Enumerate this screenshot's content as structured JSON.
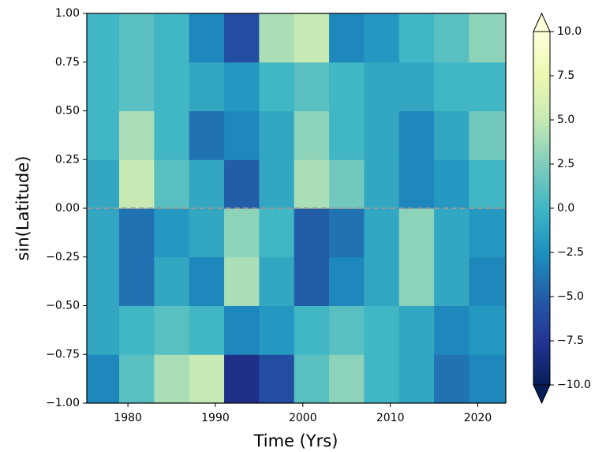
{
  "chart_data": {
    "type": "heatmap",
    "x_label": "Time (Yrs)",
    "y_label": "sin(Latitude)",
    "xlim": [
      1975.3,
      2023.2
    ],
    "xticks": [
      1980,
      1990,
      2000,
      2010,
      2020
    ],
    "ylim": [
      -1,
      1
    ],
    "yticks": [
      {
        "value": -1,
        "label": "−1.00"
      },
      {
        "value": -0.75,
        "label": "−0.75"
      },
      {
        "value": -0.5,
        "label": "−0.50"
      },
      {
        "value": -0.25,
        "label": "−0.25"
      },
      {
        "value": 0,
        "label": "0.00"
      },
      {
        "value": 0.25,
        "label": "0.25"
      },
      {
        "value": 0.5,
        "label": "0.50"
      },
      {
        "value": 0.75,
        "label": "0.75"
      },
      {
        "value": 1,
        "label": "1.00"
      }
    ],
    "x_edges": [
      1975.3,
      1979,
      1983,
      1987,
      1991,
      1995,
      1999,
      2003,
      2007,
      2011,
      2015,
      2019,
      2023.2
    ],
    "y_edges": [
      -1,
      -0.75,
      -0.5,
      -0.25,
      0,
      0.25,
      0.5,
      0.75,
      1
    ],
    "values": [
      [
        -3,
        1,
        4,
        5,
        -8,
        -6,
        1,
        3,
        0,
        -1,
        -4,
        -3
      ],
      [
        -1,
        0,
        1,
        0,
        -3,
        -2,
        0,
        1,
        0,
        -1,
        -3,
        -2
      ],
      [
        -1,
        -4,
        -1,
        -3,
        4,
        -1,
        -5,
        -3,
        -1,
        3,
        -1,
        -3
      ],
      [
        -1,
        -4,
        -2,
        -1,
        3,
        0,
        -5,
        -4,
        -1,
        3,
        -1,
        -2
      ],
      [
        -1,
        5,
        1,
        -1,
        -5,
        -1,
        4,
        2,
        -1,
        -3,
        -2,
        0
      ],
      [
        0,
        4,
        0,
        -4,
        -3,
        -1,
        3,
        0,
        -1,
        -3,
        -1,
        2
      ],
      [
        0,
        1,
        0,
        -1,
        -2,
        0,
        1,
        0,
        -1,
        -1,
        0,
        0
      ],
      [
        0,
        1,
        0,
        -3,
        -6,
        4,
        5,
        -3,
        -2,
        0,
        1,
        3
      ]
    ],
    "zlim": [
      -10,
      10
    ],
    "zticks": [
      {
        "value": -10,
        "label": "−10.0"
      },
      {
        "value": -7.5,
        "label": "−7.5"
      },
      {
        "value": -5,
        "label": "−5.0"
      },
      {
        "value": -2.5,
        "label": "−2.5"
      },
      {
        "value": 0,
        "label": "0.0"
      },
      2.5,
      {
        "value": 5,
        "label": "5.0"
      },
      7.5,
      {
        "value": 10,
        "label": "10.0"
      }
    ],
    "colormap": [
      "#081d58",
      "#253494",
      "#225ea8",
      "#1d91c0",
      "#41b6c4",
      "#7fcdbb",
      "#c7e9b4",
      "#edf8b1",
      "#ffffd9"
    ],
    "colorbar_extend": "both",
    "reference_line": {
      "y": 0,
      "color": "#999999",
      "style": "dashed"
    }
  }
}
